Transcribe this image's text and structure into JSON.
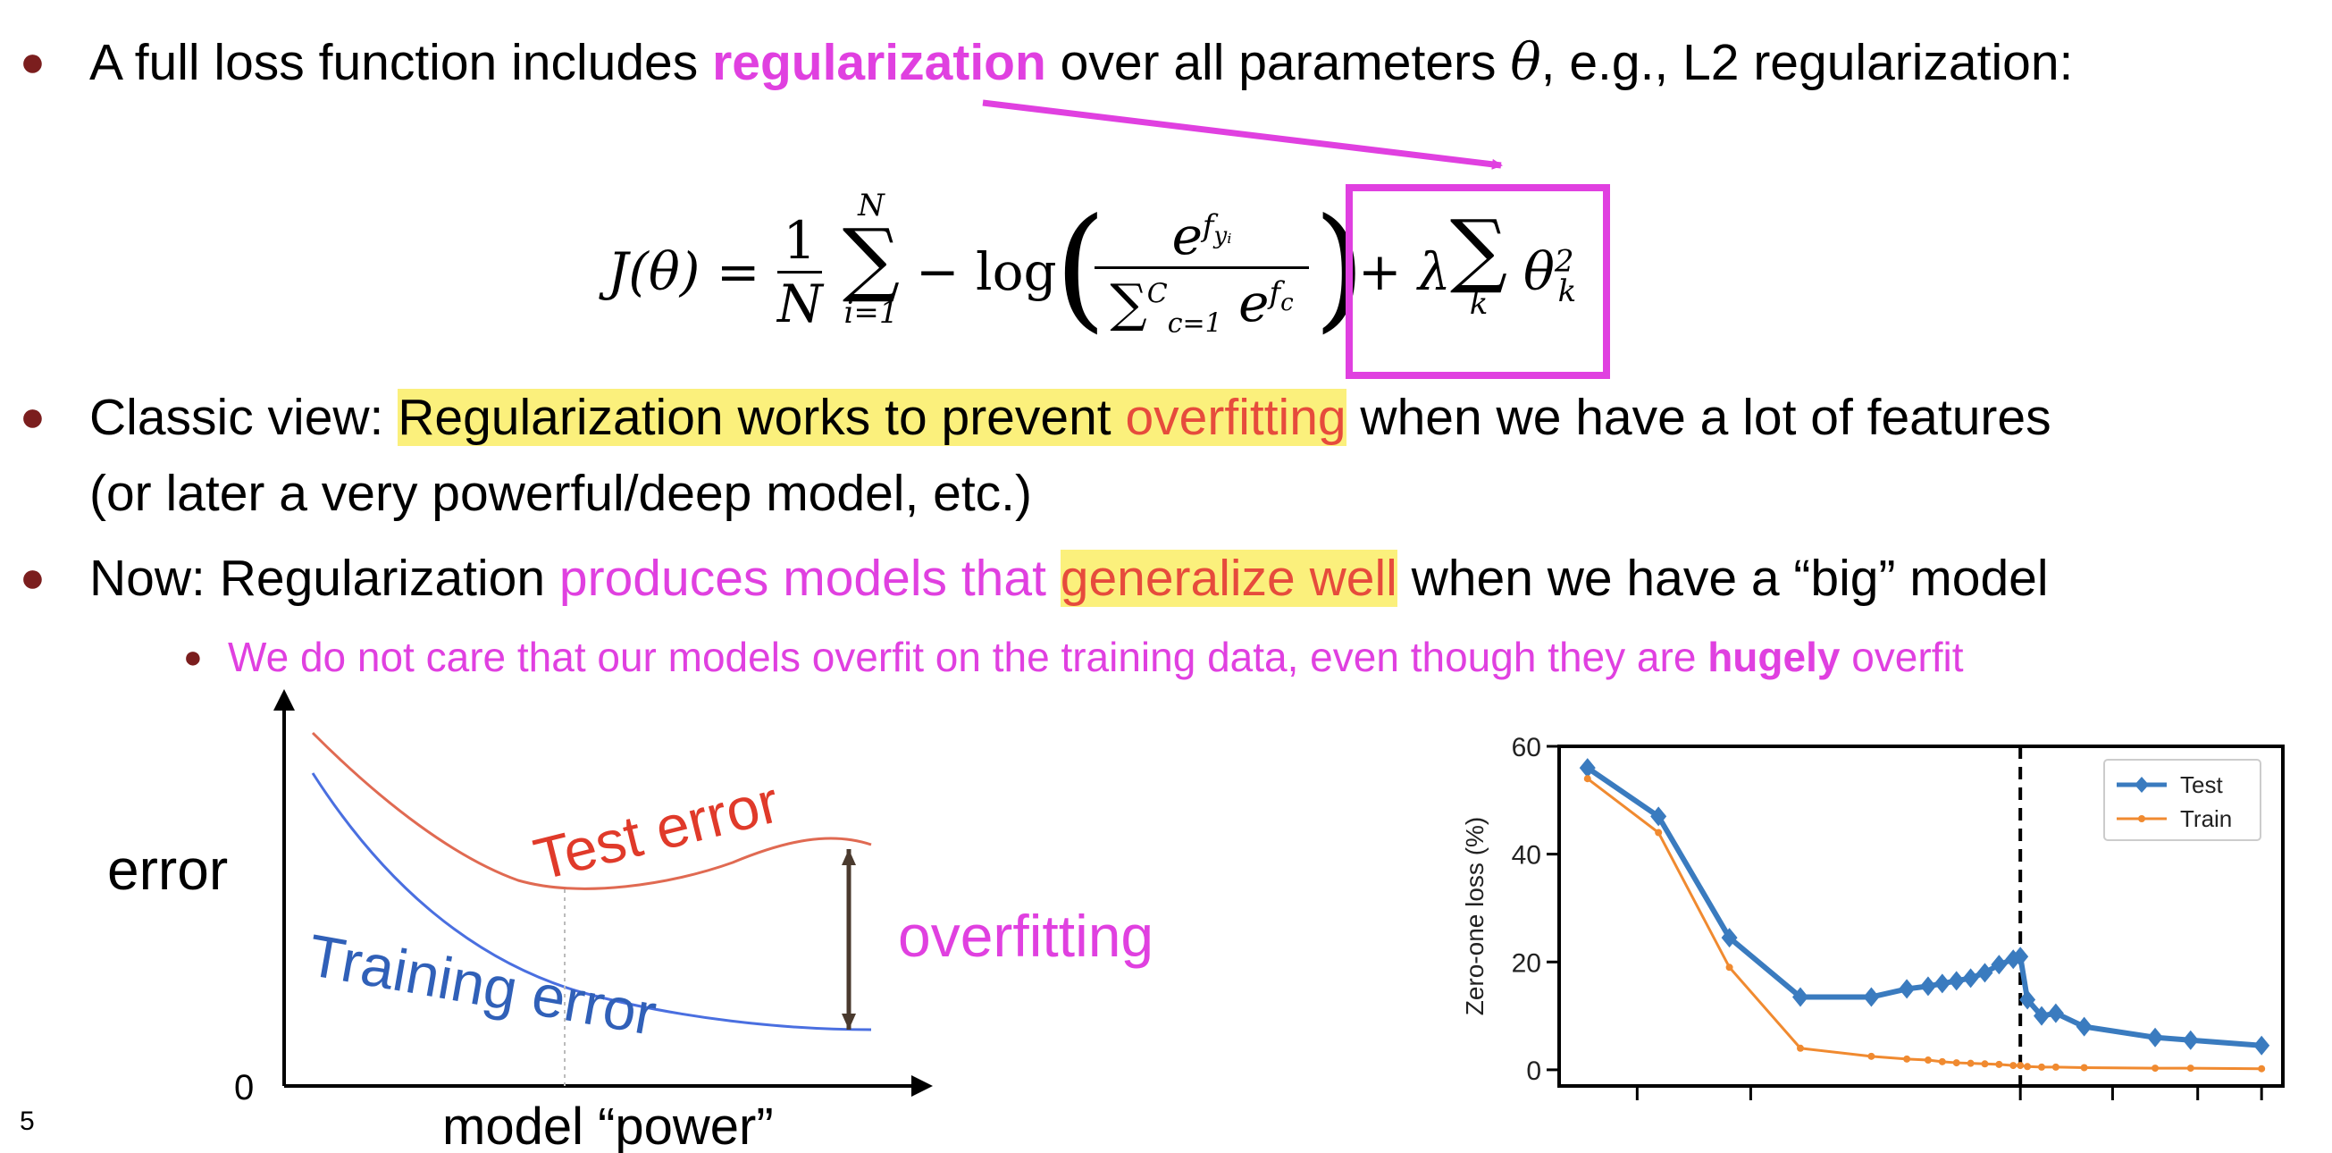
{
  "bullets": {
    "b1": {
      "pre": "A full loss function includes ",
      "highlight": "regularization",
      "post1": " over all parameters ",
      "theta": "θ",
      "post2": ", e.g., L2 regularization:"
    },
    "b2": {
      "pre": "Classic view: ",
      "hl1": "Regularization works to prevent ",
      "hl2": "overfitting",
      "post": " when we have a lot of features",
      "line2": "(or later a very powerful/deep model, etc.)"
    },
    "b3": {
      "pre": "Now: Regularization ",
      "mag": "produces models that ",
      "hl": "generalize well",
      "post": " when we have a “big” model"
    },
    "sub": {
      "pre": "We do not care that our models overfit on the training data, even though they are ",
      "bold": "hugely",
      "post": " overfit"
    }
  },
  "equation": {
    "lhs": "J(θ) = ",
    "frac_num": "1",
    "frac_den": "N",
    "sum_top": "N",
    "sum_bot": "i=1",
    "minus_log": "− log",
    "exp_num": "e",
    "exp_num_sup": "f",
    "exp_num_sub": "yᵢ",
    "den_sum_top": "C",
    "den_sum_bot": "c=1",
    "den_e": "e",
    "den_sup": "f",
    "den_sub": "c",
    "reg": "+ λ",
    "reg_sum_bot": "k",
    "reg_theta": "θ",
    "reg_sup": "2",
    "reg_sub": "k"
  },
  "left_figure": {
    "ylabel": "error",
    "xlabel": "model “power”",
    "zero": "0",
    "test_label": "Test error",
    "train_label": "Training error",
    "overfit_label": "overfitting",
    "colors": {
      "test": "#e06a52",
      "train": "#4a6fe0",
      "test_text": "#e03a2a",
      "train_text": "#3060b8",
      "overfit": "#e040e0"
    }
  },
  "chart_data": {
    "type": "line",
    "ylabel": "Zero-one loss (%)",
    "ylim": [
      0,
      60
    ],
    "yticks": [
      "0",
      "20",
      "40",
      "60"
    ],
    "legend_position": "top-right",
    "series": [
      {
        "name": "Test",
        "color": "#3a7bbf",
        "x": [
          1,
          2,
          3,
          4,
          5,
          5.5,
          5.8,
          6,
          6.2,
          6.4,
          6.6,
          6.8,
          7,
          7.1,
          7.2,
          7.4,
          7.6,
          8,
          9,
          9.5,
          10.5
        ],
        "y": [
          56,
          47,
          24.5,
          13.5,
          13.5,
          15,
          15.5,
          16,
          16.5,
          17,
          18,
          19.5,
          20.5,
          21,
          13,
          10,
          10.5,
          8,
          6,
          5.5,
          4.5
        ]
      },
      {
        "name": "Train",
        "color": "#f08a30",
        "x": [
          1,
          2,
          3,
          4,
          5,
          5.5,
          5.8,
          6,
          6.2,
          6.4,
          6.6,
          6.8,
          7,
          7.1,
          7.2,
          7.4,
          7.6,
          8,
          9,
          9.5,
          10.5
        ],
        "y": [
          54,
          44,
          19,
          4,
          2.5,
          2,
          1.8,
          1.5,
          1.3,
          1.2,
          1.1,
          1,
          0.8,
          0.8,
          0.6,
          0.5,
          0.5,
          0.4,
          0.3,
          0.3,
          0.2
        ]
      }
    ],
    "vline_x": 7.1
  },
  "page_number": "5"
}
